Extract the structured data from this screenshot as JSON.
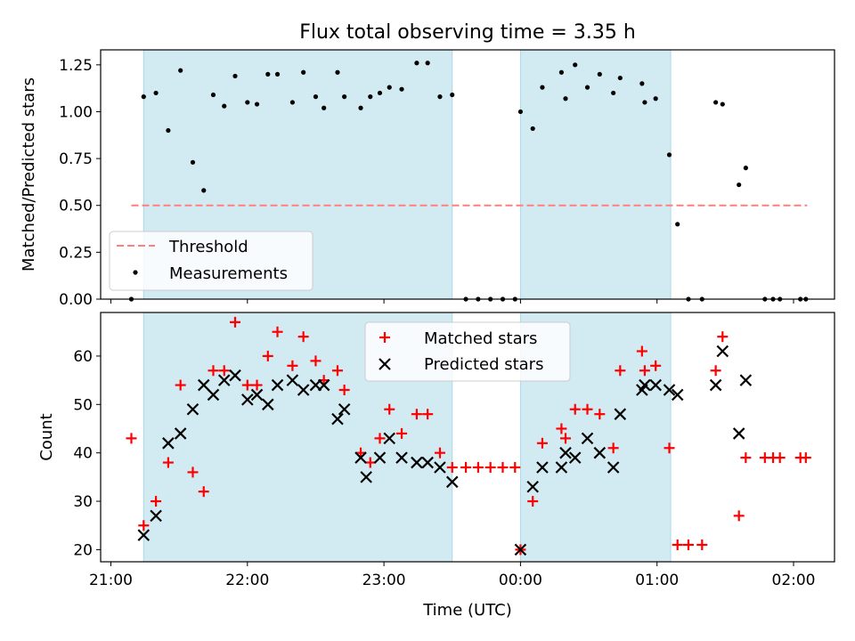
{
  "figure": {
    "title": "Flux total observing time = 3.35 h",
    "xlabel": "Time (UTC)",
    "x_ticks": [
      "21:00",
      "22:00",
      "23:00",
      "00:00",
      "01:00",
      "02:00"
    ],
    "x_tick_hours": [
      0,
      1,
      2,
      3,
      4,
      5
    ],
    "x_origin_time": "21:00",
    "xlim": [
      -0.075,
      5.3
    ],
    "observing_windows": [
      [
        0.24,
        2.5
      ],
      [
        3.0,
        4.1
      ]
    ],
    "colors": {
      "window": "#add8e6",
      "threshold": "#ff7f7f",
      "measurement": "#000000",
      "matched": "#ff0000",
      "predicted": "#000000"
    }
  },
  "chart_data": [
    {
      "type": "scatter",
      "ylabel": "Matched/Predicted stars",
      "ylim": [
        0,
        1.33
      ],
      "y_ticks": [
        0,
        0.25,
        0.5,
        0.75,
        1.0,
        1.25
      ],
      "y_tick_labels": [
        "0.00",
        "0.25",
        "0.50",
        "0.75",
        "1.00",
        "1.25",
        ""
      ],
      "grid": false,
      "legend_position": "lower-left",
      "threshold": {
        "name": "Threshold",
        "value": 0.5,
        "x_range": [
          0.15,
          5.1
        ]
      },
      "series": [
        {
          "name": "Measurements",
          "x": [
            0.15,
            0.24,
            0.33,
            0.42,
            0.51,
            0.6,
            0.68,
            0.75,
            0.83,
            0.91,
            1.0,
            1.07,
            1.15,
            1.22,
            1.33,
            1.41,
            1.5,
            1.56,
            1.66,
            1.71,
            1.83,
            1.9,
            1.97,
            2.04,
            2.13,
            2.24,
            2.32,
            2.41,
            2.5,
            2.6,
            2.69,
            2.78,
            2.87,
            2.96,
            3.0,
            3.09,
            3.16,
            3.3,
            3.33,
            3.4,
            3.49,
            3.58,
            3.68,
            3.73,
            3.89,
            3.91,
            3.99,
            4.09,
            4.15,
            4.23,
            4.33,
            4.43,
            4.48,
            4.6,
            4.65,
            4.79,
            4.85,
            4.9,
            5.05,
            5.09
          ],
          "y": [
            0.0,
            1.08,
            1.1,
            0.9,
            1.22,
            0.73,
            0.58,
            1.09,
            1.03,
            1.19,
            1.05,
            1.04,
            1.2,
            1.2,
            1.05,
            1.21,
            1.08,
            1.02,
            1.21,
            1.08,
            1.02,
            1.08,
            1.1,
            1.13,
            1.12,
            1.26,
            1.26,
            1.08,
            1.09,
            0.0,
            0.0,
            0.0,
            0.0,
            0.0,
            1.0,
            0.91,
            1.13,
            1.21,
            1.07,
            1.25,
            1.13,
            1.2,
            1.1,
            1.18,
            1.15,
            1.05,
            1.07,
            0.77,
            0.4,
            0.0,
            0.0,
            1.05,
            1.04,
            0.61,
            0.7,
            0.0,
            0.0,
            0.0,
            0.0,
            0.0
          ]
        }
      ]
    },
    {
      "type": "scatter",
      "ylabel": "Count",
      "ylim": [
        17.5,
        69
      ],
      "y_ticks": [
        20,
        30,
        40,
        50,
        60
      ],
      "grid": false,
      "legend_position": "upper-center",
      "series": [
        {
          "name": "Matched stars",
          "marker": "plus",
          "x": [
            0.15,
            0.24,
            0.33,
            0.42,
            0.51,
            0.6,
            0.68,
            0.75,
            0.83,
            0.91,
            1.0,
            1.07,
            1.15,
            1.22,
            1.33,
            1.41,
            1.5,
            1.56,
            1.66,
            1.71,
            1.83,
            1.9,
            1.97,
            2.04,
            2.13,
            2.24,
            2.32,
            2.41,
            2.5,
            2.6,
            2.69,
            2.78,
            2.87,
            2.96,
            3.0,
            3.09,
            3.16,
            3.3,
            3.33,
            3.4,
            3.49,
            3.58,
            3.68,
            3.73,
            3.89,
            3.91,
            3.99,
            4.09,
            4.15,
            4.23,
            4.33,
            4.43,
            4.48,
            4.6,
            4.65,
            4.79,
            4.85,
            4.9,
            5.05,
            5.09
          ],
          "y": [
            43,
            25,
            30,
            38,
            54,
            36,
            32,
            57,
            57,
            67,
            54,
            54,
            60,
            65,
            58,
            64,
            59,
            55,
            57,
            53,
            40,
            38,
            43,
            49,
            44,
            48,
            48,
            40,
            37,
            37,
            37,
            37,
            37,
            37,
            20,
            30,
            42,
            45,
            43,
            49,
            49,
            48,
            41,
            57,
            61,
            57,
            58,
            41,
            21,
            21,
            21,
            57,
            64,
            27,
            39,
            39,
            39,
            39,
            39,
            39
          ]
        },
        {
          "name": "Predicted stars",
          "marker": "x",
          "x": [
            0.24,
            0.33,
            0.42,
            0.51,
            0.6,
            0.68,
            0.75,
            0.83,
            0.91,
            1.0,
            1.07,
            1.15,
            1.22,
            1.33,
            1.41,
            1.5,
            1.56,
            1.66,
            1.71,
            1.83,
            1.87,
            1.97,
            2.04,
            2.13,
            2.24,
            2.32,
            2.41,
            2.5,
            3.0,
            3.09,
            3.16,
            3.3,
            3.33,
            3.4,
            3.49,
            3.58,
            3.68,
            3.73,
            3.89,
            3.91,
            3.99,
            4.09,
            4.15,
            4.43,
            4.48,
            4.6,
            4.65
          ],
          "y": [
            23,
            27,
            42,
            44,
            49,
            54,
            52,
            55,
            56,
            51,
            52,
            50,
            54,
            55,
            53,
            54,
            54,
            47,
            49,
            39,
            35,
            39,
            43,
            39,
            38,
            38,
            37,
            34,
            20,
            33,
            37,
            37,
            40,
            39,
            43,
            40,
            37,
            48,
            53,
            54,
            54,
            53,
            52,
            54,
            61,
            44,
            55
          ]
        }
      ]
    }
  ]
}
